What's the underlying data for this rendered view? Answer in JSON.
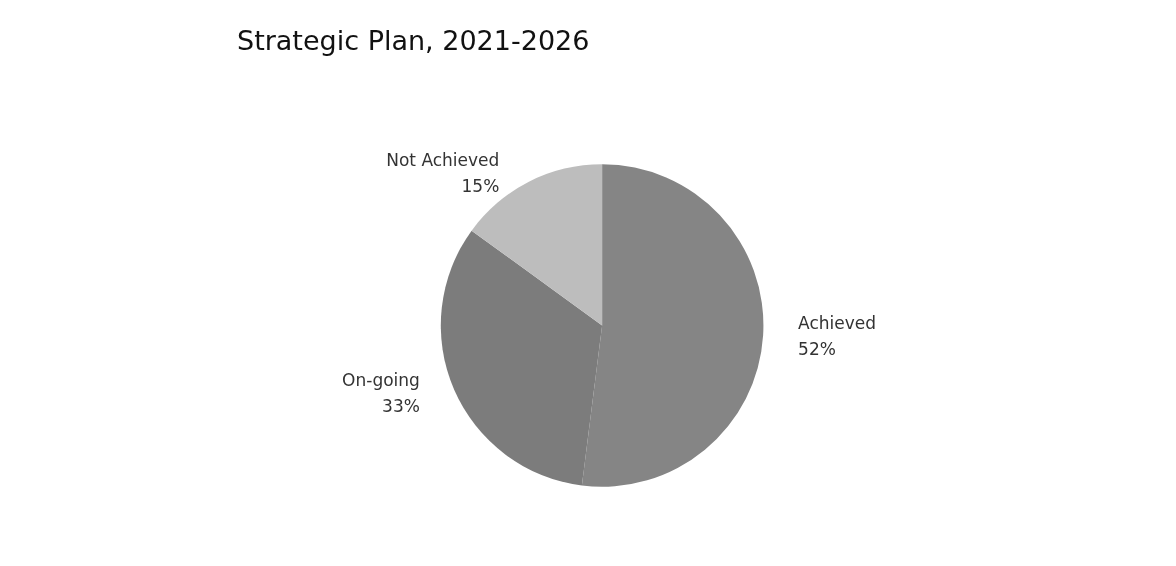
{
  "chart_data": {
    "type": "pie",
    "title": "Strategic Plan, 2021-2026",
    "categories": [
      "Achieved",
      "On-going",
      "Not Achieved"
    ],
    "values": [
      52,
      33,
      15
    ],
    "colors": [
      "#858585",
      "#7c7c7c",
      "#bdbdbd"
    ],
    "value_labels": [
      "52%",
      "33%",
      "15%"
    ],
    "legend": false
  }
}
